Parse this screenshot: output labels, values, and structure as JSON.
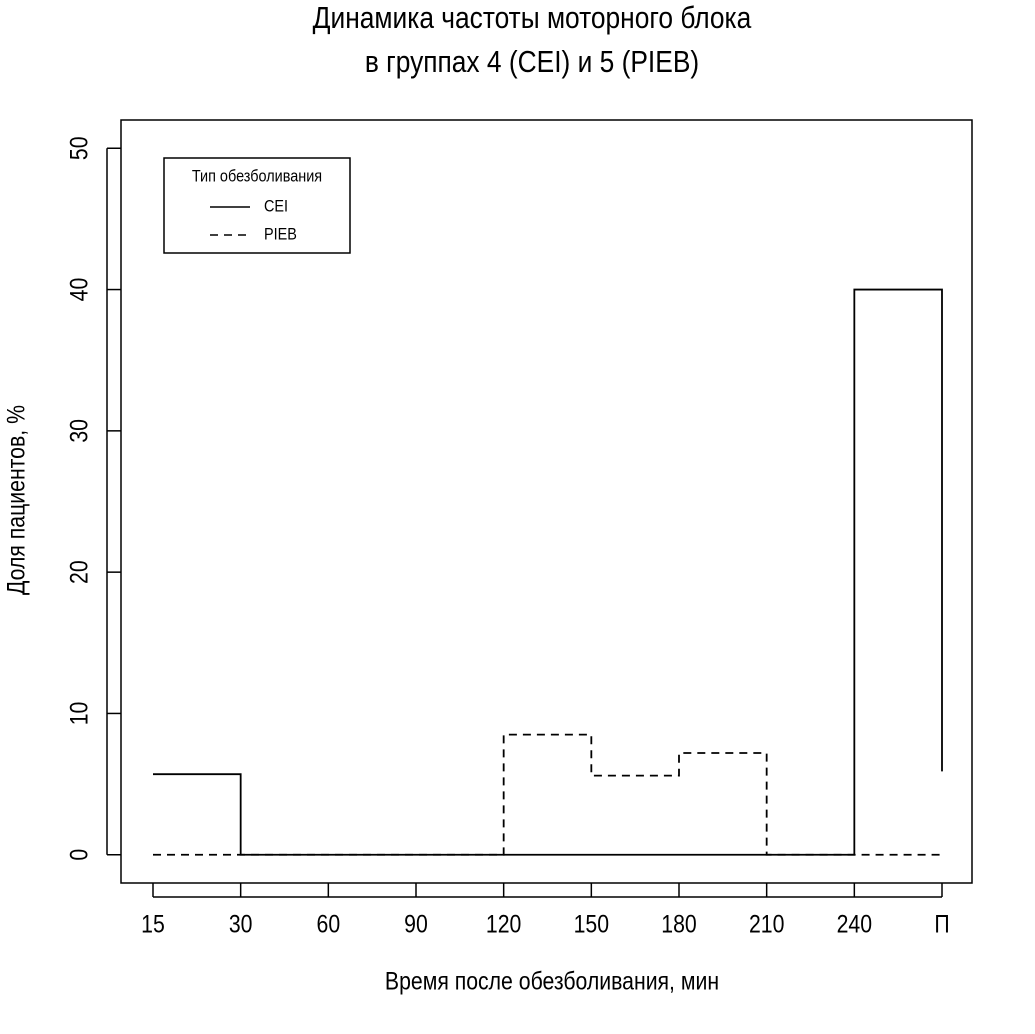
{
  "chart_data": {
    "type": "step",
    "title": "Динамика частоты моторного блока",
    "subtitle": "в группах 4 (CEI) и 5 (PIEB)",
    "x_label": "Время после обезболивания, мин",
    "y_label": "Доля пациентов, %",
    "categories": [
      "15",
      "30",
      "60",
      "90",
      "120",
      "150",
      "180",
      "210",
      "240",
      "П"
    ],
    "series": [
      {
        "name": "CEI",
        "color": "#000000",
        "line_style": "solid",
        "values": [
          5.7,
          0,
          0,
          0,
          0,
          0,
          0,
          0,
          40,
          5.9
        ]
      },
      {
        "name": "PIEB",
        "color": "#000000",
        "line_style": "dashed",
        "values": [
          0,
          0,
          0,
          0,
          8.5,
          5.6,
          7.2,
          0,
          0,
          0
        ]
      }
    ],
    "ylim": [
      -2,
      52
    ],
    "yticks": [
      0,
      10,
      20,
      30,
      40,
      50
    ],
    "legend_title": "Тип обезболивания",
    "legend": "top-left"
  }
}
